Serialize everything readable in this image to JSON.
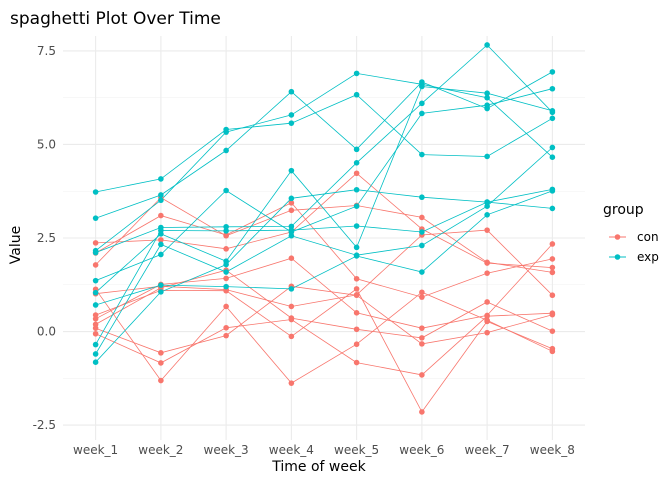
{
  "chart_data": {
    "type": "line",
    "title": "spaghetti Plot Over Time",
    "xlabel": "Time of week",
    "ylabel": "Value",
    "categories": [
      "week_1",
      "week_2",
      "week_3",
      "week_4",
      "week_5",
      "week_6",
      "week_7",
      "week_8"
    ],
    "ylim": [
      -2.9,
      7.9
    ],
    "yticks": [
      -2.5,
      0.0,
      2.5,
      5.0,
      7.5
    ],
    "ytick_labels": [
      "-2.5",
      "0.0",
      "2.5",
      "5.0",
      "7.5"
    ],
    "grid": true,
    "legend": {
      "title": "group",
      "position": "right",
      "entries": [
        {
          "label": "con",
          "color": "#F8766D"
        },
        {
          "label": "exp",
          "color": "#00BFC4"
        }
      ]
    },
    "series": [
      {
        "group": "con",
        "values": [
          2.37,
          2.45,
          2.21,
          2.66,
          4.23,
          2.74,
          1.83,
          1.71
        ]
      },
      {
        "group": "con",
        "values": [
          1.78,
          3.58,
          2.56,
          3.24,
          3.37,
          3.05,
          1.85,
          1.58
        ]
      },
      {
        "group": "con",
        "values": [
          2.1,
          3.1,
          2.58,
          3.44,
          1.41,
          0.92,
          1.56,
          1.94
        ]
      },
      {
        "group": "con",
        "values": [
          1.01,
          1.21,
          1.12,
          0.67,
          0.98,
          2.58,
          2.71,
          0.97
        ]
      },
      {
        "group": "con",
        "values": [
          0.34,
          1.26,
          1.42,
          1.96,
          0.5,
          0.09,
          0.43,
          2.34
        ]
      },
      {
        "group": "con",
        "values": [
          0.19,
          1.17,
          1.64,
          0.36,
          0.06,
          -0.17,
          0.79,
          0.01
        ]
      },
      {
        "group": "con",
        "values": [
          0.09,
          -0.57,
          -0.11,
          1.21,
          0.97,
          -0.33,
          -0.03,
          0.45
        ]
      },
      {
        "group": "con",
        "values": [
          -0.06,
          -0.84,
          0.1,
          0.32,
          -0.83,
          -1.16,
          0.41,
          0.49
        ]
      },
      {
        "group": "con",
        "values": [
          1.13,
          -1.31,
          0.67,
          -1.38,
          -0.34,
          1.05,
          0.3,
          -0.53
        ]
      },
      {
        "group": "con",
        "values": [
          0.44,
          1.1,
          1.09,
          -0.13,
          1.14,
          -2.15,
          0.27,
          -0.46
        ]
      },
      {
        "group": "exp",
        "values": [
          3.73,
          4.08,
          5.4,
          5.57,
          6.33,
          4.73,
          4.68,
          5.7
        ]
      },
      {
        "group": "exp",
        "values": [
          3.03,
          3.65,
          4.84,
          6.41,
          4.87,
          6.67,
          5.96,
          6.94
        ]
      },
      {
        "group": "exp",
        "values": [
          2.16,
          3.51,
          5.33,
          5.79,
          6.9,
          6.61,
          6.25,
          4.66
        ]
      },
      {
        "group": "exp",
        "values": [
          2.11,
          2.78,
          2.8,
          2.81,
          4.51,
          6.1,
          7.66,
          5.86
        ]
      },
      {
        "group": "exp",
        "values": [
          1.36,
          2.06,
          3.77,
          2.66,
          3.35,
          5.83,
          6.05,
          6.49
        ]
      },
      {
        "group": "exp",
        "values": [
          1.04,
          2.61,
          1.88,
          4.3,
          2.25,
          6.55,
          6.37,
          5.9
        ]
      },
      {
        "group": "exp",
        "values": [
          -0.35,
          2.7,
          2.69,
          2.71,
          2.82,
          2.66,
          3.46,
          3.8
        ]
      },
      {
        "group": "exp",
        "values": [
          0.71,
          1.24,
          1.2,
          1.14,
          2.02,
          1.59,
          3.12,
          3.76
        ]
      },
      {
        "group": "exp",
        "values": [
          -0.6,
          2.33,
          1.59,
          2.56,
          2.04,
          2.3,
          3.35,
          4.92
        ]
      },
      {
        "group": "exp",
        "values": [
          -0.82,
          1.06,
          1.79,
          3.56,
          3.79,
          3.59,
          3.46,
          3.29
        ]
      }
    ]
  }
}
